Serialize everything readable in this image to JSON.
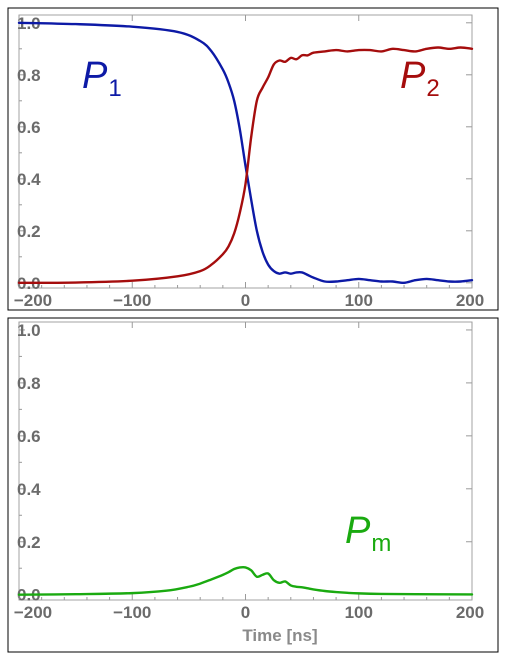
{
  "chart_data": [
    {
      "type": "line",
      "title": "",
      "xlabel": "",
      "ylabel": "",
      "xlim": [
        -200,
        200
      ],
      "ylim": [
        -0.02,
        1.03
      ],
      "x_ticks": [
        -200,
        -100,
        0,
        100,
        200
      ],
      "x_tick_labels": [
        "−200",
        "−100",
        "0",
        "100",
        "200"
      ],
      "y_ticks": [
        0.0,
        0.2,
        0.4,
        0.6,
        0.8,
        1.0
      ],
      "y_tick_labels": [
        "0.0",
        "0.2",
        "0.4",
        "0.6",
        "0.8",
        "1.0"
      ],
      "grid": false,
      "series": [
        {
          "name_main": "P",
          "name_sub": "1",
          "color": "#0d1aa6",
          "x": [
            -200,
            -150,
            -100,
            -60,
            -40,
            -30,
            -20,
            -15,
            -10,
            -5,
            0,
            5,
            10,
            15,
            20,
            25,
            30,
            35,
            40,
            45,
            50,
            55,
            60,
            70,
            80,
            90,
            100,
            110,
            120,
            130,
            140,
            150,
            160,
            170,
            180,
            190,
            200
          ],
          "y": [
            1.0,
            0.995,
            0.985,
            0.965,
            0.93,
            0.89,
            0.82,
            0.77,
            0.7,
            0.59,
            0.45,
            0.32,
            0.2,
            0.12,
            0.07,
            0.045,
            0.035,
            0.04,
            0.035,
            0.04,
            0.04,
            0.03,
            0.02,
            0.005,
            0.005,
            0.01,
            0.015,
            0.01,
            0.005,
            0.005,
            0.0,
            0.01,
            0.015,
            0.01,
            0.005,
            0.005,
            0.01
          ]
        },
        {
          "name_main": "P",
          "name_sub": "2",
          "color": "#a50d0d",
          "x": [
            -200,
            -150,
            -100,
            -60,
            -40,
            -30,
            -20,
            -15,
            -10,
            -5,
            0,
            5,
            10,
            15,
            20,
            25,
            30,
            35,
            40,
            45,
            50,
            55,
            60,
            70,
            80,
            90,
            100,
            110,
            120,
            130,
            140,
            150,
            160,
            170,
            180,
            190,
            200
          ],
          "y": [
            0.0,
            0.001,
            0.008,
            0.025,
            0.045,
            0.07,
            0.11,
            0.14,
            0.19,
            0.27,
            0.38,
            0.56,
            0.7,
            0.75,
            0.79,
            0.84,
            0.855,
            0.85,
            0.865,
            0.86,
            0.875,
            0.875,
            0.885,
            0.89,
            0.895,
            0.89,
            0.895,
            0.895,
            0.89,
            0.9,
            0.895,
            0.89,
            0.9,
            0.905,
            0.9,
            0.905,
            0.9
          ]
        }
      ]
    },
    {
      "type": "line",
      "title": "",
      "xlabel": "Time [ns]",
      "ylabel": "",
      "xlim": [
        -200,
        200
      ],
      "ylim": [
        -0.02,
        1.03
      ],
      "x_ticks": [
        -200,
        -100,
        0,
        100,
        200
      ],
      "x_tick_labels": [
        "−200",
        "−100",
        "0",
        "100",
        "200"
      ],
      "y_ticks": [
        0.0,
        0.2,
        0.4,
        0.6,
        0.8,
        1.0
      ],
      "y_tick_labels": [
        "0.0",
        "0.2",
        "0.4",
        "0.6",
        "0.8",
        "1.0"
      ],
      "grid": false,
      "series": [
        {
          "name_main": "P",
          "name_sub": "m",
          "color": "#1aaa10",
          "x": [
            -200,
            -150,
            -100,
            -70,
            -50,
            -40,
            -30,
            -20,
            -15,
            -10,
            -5,
            0,
            5,
            10,
            15,
            20,
            25,
            30,
            35,
            40,
            45,
            50,
            55,
            60,
            70,
            80,
            90,
            100,
            120,
            150,
            200
          ],
          "y": [
            0.0,
            0.002,
            0.006,
            0.015,
            0.03,
            0.042,
            0.058,
            0.075,
            0.085,
            0.097,
            0.103,
            0.103,
            0.092,
            0.068,
            0.075,
            0.08,
            0.055,
            0.045,
            0.05,
            0.035,
            0.03,
            0.028,
            0.024,
            0.02,
            0.014,
            0.01,
            0.007,
            0.005,
            0.003,
            0.002,
            0.001
          ]
        }
      ]
    }
  ]
}
